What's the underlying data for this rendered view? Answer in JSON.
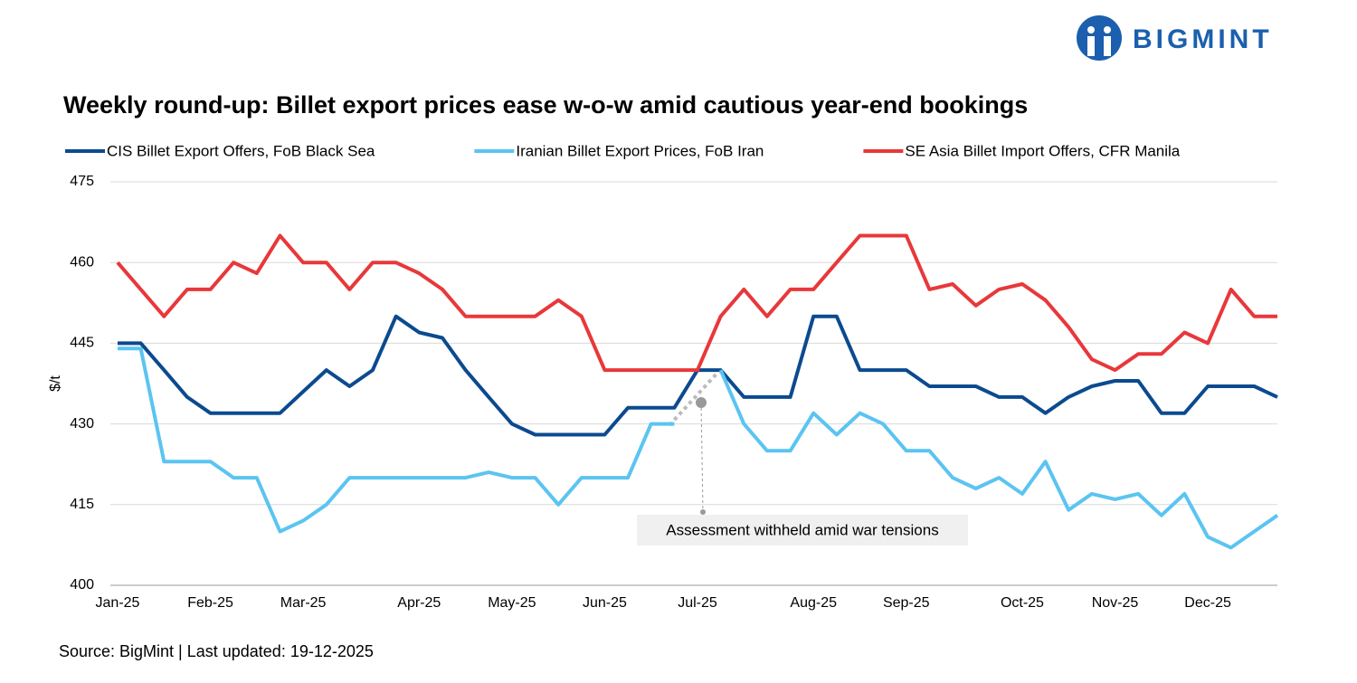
{
  "brand": "BIGMINT",
  "chart_data": {
    "type": "line",
    "title": "Weekly round-up: Billet export prices ease w-o-w amid cautious year-end bookings",
    "y_label": "$/t",
    "source": "Source: BigMint | Last updated: 19-12-2025",
    "annotation": "Assessment withheld amid  war tensions",
    "categories": [
      "Jan-25",
      null,
      null,
      null,
      "Feb-25",
      null,
      null,
      null,
      "Mar-25",
      null,
      null,
      null,
      null,
      "Apr-25",
      null,
      null,
      null,
      "May-25",
      null,
      null,
      null,
      "Jun-25",
      null,
      null,
      null,
      "Jul-25",
      null,
      null,
      null,
      null,
      "Aug-25",
      null,
      null,
      null,
      "Sep-25",
      null,
      null,
      null,
      null,
      "Oct-25",
      null,
      null,
      null,
      "Nov-25",
      null,
      null,
      null,
      "Dec-25",
      null,
      null,
      null
    ],
    "ylim": [
      400,
      475
    ],
    "yticks": [
      400,
      415,
      430,
      445,
      460,
      475
    ],
    "grid": true,
    "legend": "top",
    "series": [
      {
        "name": "CIS Billet Export Offers, FoB Black Sea",
        "color": "#0b4a8f",
        "values": [
          445,
          445,
          440,
          435,
          432,
          432,
          432,
          432,
          436,
          440,
          437,
          440,
          450,
          447,
          446,
          440,
          435,
          430,
          428,
          428,
          428,
          428,
          433,
          433,
          433,
          440,
          440,
          435,
          435,
          435,
          450,
          450,
          440,
          440,
          440,
          437,
          437,
          437,
          435,
          435,
          432,
          435,
          437,
          438,
          438,
          432,
          432,
          437,
          437,
          437,
          435
        ]
      },
      {
        "name": "Iranian Billet Export Prices, FoB Iran",
        "color": "#5bc4f1",
        "values": [
          444,
          444,
          423,
          423,
          423,
          420,
          420,
          410,
          412,
          415,
          420,
          420,
          420,
          420,
          420,
          420,
          421,
          420,
          420,
          415,
          420,
          420,
          420,
          430,
          430,
          null,
          440,
          430,
          425,
          425,
          432,
          428,
          432,
          430,
          425,
          425,
          420,
          418,
          420,
          417,
          423,
          414,
          417,
          416,
          417,
          413,
          417,
          409,
          407,
          410,
          413
        ]
      },
      {
        "name": "SE Asia Billet Import Offers, CFR Manila",
        "color": "#e8383a",
        "values": [
          460,
          455,
          450,
          455,
          455,
          460,
          458,
          465,
          460,
          460,
          455,
          460,
          460,
          458,
          455,
          450,
          450,
          450,
          450,
          453,
          450,
          440,
          440,
          440,
          440,
          440,
          450,
          455,
          450,
          455,
          455,
          460,
          465,
          465,
          465,
          455,
          456,
          452,
          455,
          456,
          453,
          448,
          442,
          440,
          443,
          443,
          447,
          445,
          455,
          450,
          450
        ]
      }
    ]
  }
}
